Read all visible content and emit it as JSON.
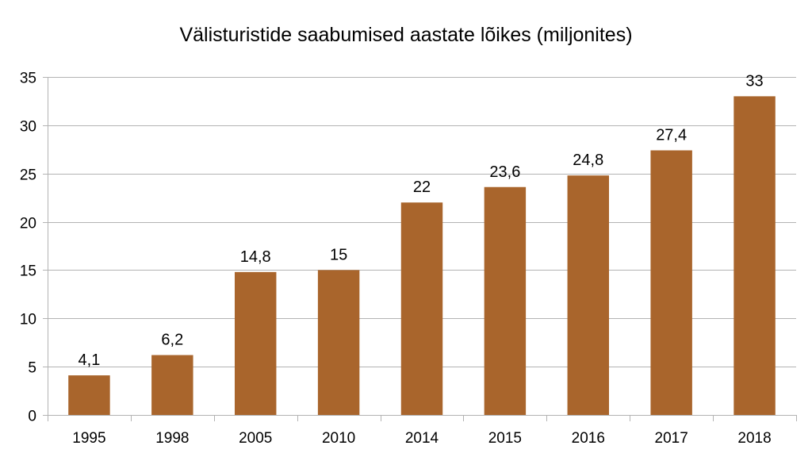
{
  "chart_data": {
    "type": "bar",
    "title": "Välisturistide saabumised aastate lõikes (miljonites)",
    "categories": [
      "1995",
      "1998",
      "2005",
      "2010",
      "2014",
      "2015",
      "2016",
      "2017",
      "2018"
    ],
    "values": [
      4.1,
      6.2,
      14.8,
      15,
      22,
      23.6,
      24.8,
      27.4,
      33
    ],
    "data_labels": [
      "4,1",
      "6,2",
      "14,8",
      "15",
      "22",
      "23,6",
      "24,8",
      "27,4",
      "33"
    ],
    "yticks": [
      0,
      5,
      10,
      15,
      20,
      25,
      30,
      35
    ],
    "ylim": [
      0,
      35
    ],
    "xlabel": "",
    "ylabel": "",
    "grid": true,
    "legend": "none",
    "bar_color": "#a9652c",
    "grid_color": "#b3b3b3"
  }
}
